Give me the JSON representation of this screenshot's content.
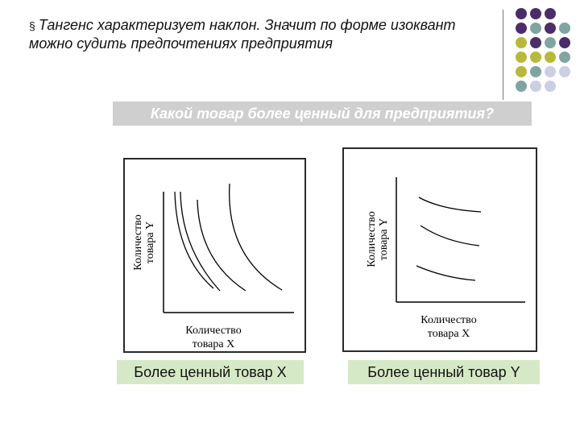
{
  "slide": {
    "bullet": "§",
    "title_line1": "Тангенс характеризует наклон. Значит по форме изоквант",
    "title_line2": "можно судить предпочтениях предприятия",
    "question": "Какой товар более ценный для предприятия?"
  },
  "left_graph": {
    "ylabel_line1": "Количество",
    "ylabel_line2": "товара Y",
    "xlabel_line1": "Количество",
    "xlabel_line2": "товара  X",
    "answer": "Более ценный товар X"
  },
  "right_graph": {
    "ylabel_line1": "Количество",
    "ylabel_line2": "товара Y",
    "xlabel_line1": "Количество",
    "xlabel_line2": "товара  X",
    "answer": "Более ценный товар Y"
  },
  "colors": {
    "purple": "#4b2d6a",
    "teal": "#7fa5a1",
    "olive": "#b8b93a",
    "lavender": "#cccfe3",
    "banner": "#cfcfcf",
    "answer_bg": "#d6e9c6"
  }
}
